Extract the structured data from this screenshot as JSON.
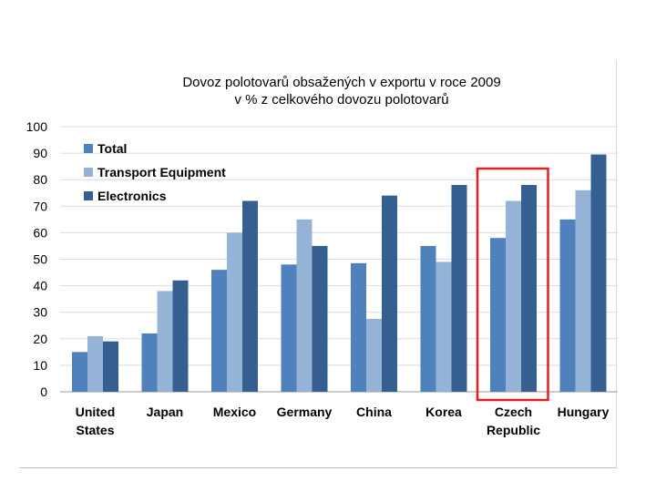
{
  "chart_data": {
    "type": "bar",
    "title_line1": "Dovoz polotovarů obsažených v exportu v roce 2009",
    "title_line2": "v % z celkového dovozu polotovarů",
    "categories": [
      [
        "United",
        "States"
      ],
      [
        "Japan"
      ],
      [
        "Mexico"
      ],
      [
        "Germany"
      ],
      [
        "China"
      ],
      [
        "Korea"
      ],
      [
        "Czech",
        "Republic"
      ],
      [
        "Hungary"
      ]
    ],
    "series": [
      {
        "name": "Total",
        "color": "#4f81bd",
        "values": [
          15,
          22,
          46,
          48,
          48.5,
          55,
          58,
          65
        ]
      },
      {
        "name": "Transport Equipment",
        "color": "#95b3d7",
        "values": [
          21,
          38,
          60,
          65,
          27.5,
          49,
          72,
          76
        ]
      },
      {
        "name": "Electronics",
        "color": "#365f91",
        "values": [
          19,
          42,
          72,
          55,
          74,
          78,
          78,
          89.5
        ]
      }
    ],
    "ylim": [
      0,
      100
    ],
    "yticks": [
      0,
      10,
      20,
      30,
      40,
      50,
      60,
      70,
      80,
      90,
      100
    ],
    "grid": true,
    "legend": "top-left",
    "highlight": {
      "category_index": 6,
      "color": "#e02020"
    }
  }
}
